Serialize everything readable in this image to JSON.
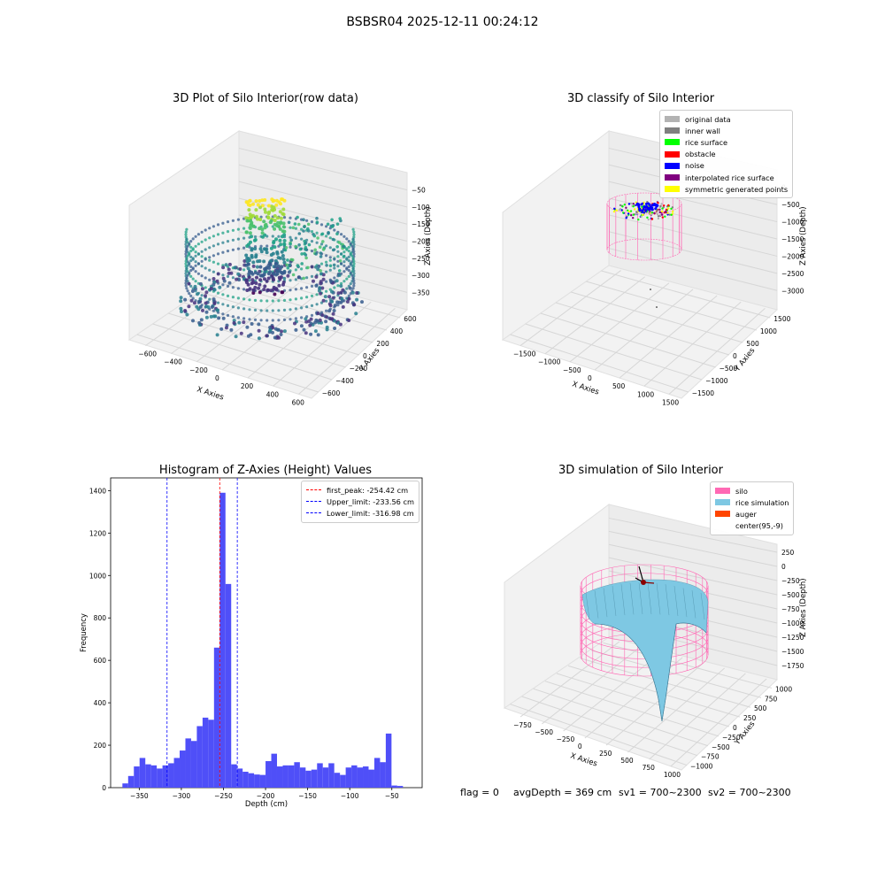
{
  "figure": {
    "title": "BSBSR04 2025-12-11 00:24:12",
    "footer": {
      "flag": "flag = 0",
      "avg": "avgDepth = 369 cm",
      "sv1": "sv1 = 700~2300",
      "sv2": "sv2 = 700~2300"
    }
  },
  "colors": {
    "histogram_bar": "#4f4ff8",
    "first_peak_line": "#ff0000",
    "limit_line": "#0000ff",
    "silo": "#ff69b4",
    "rice_simulation": "#7ec8e3",
    "auger": "#ff4500"
  },
  "chart_data": [
    {
      "type": "scatter3d",
      "title": "3D Plot of Silo Interior(row data)",
      "xlabel": "X Axies",
      "ylabel": "Y Axies",
      "zlabel": "Z Axies (Depth)",
      "xticks": [
        "−600",
        "−400",
        "−200",
        "0",
        "200",
        "400",
        "600"
      ],
      "yticks": [
        "−600",
        "−400",
        "−200",
        "0",
        "200",
        "400",
        "600"
      ],
      "zticks": [
        "−50",
        "−100",
        "−150",
        "−200",
        "−250",
        "−300",
        "−350"
      ],
      "xlim": [
        -600,
        650
      ],
      "ylim": [
        -650,
        650
      ],
      "zlim": [
        -380,
        -30
      ],
      "colormap": "viridis"
    },
    {
      "type": "scatter3d",
      "title": "3D classify of Silo Interior",
      "xlabel": "X Axies",
      "ylabel": "Y Axies",
      "zlabel": "Z Axies (Depth)",
      "xticks": [
        "−1500",
        "−1000",
        "−500",
        "0",
        "500",
        "1000",
        "1500"
      ],
      "yticks": [
        "−1500",
        "−1000",
        "−500",
        "0",
        "500",
        "1000",
        "1500"
      ],
      "zticks": [
        "0",
        "−500",
        "−1000",
        "−1500",
        "−2000",
        "−2500",
        "−3000"
      ],
      "xlim": [
        -1600,
        1600
      ],
      "ylim": [
        -1600,
        1600
      ],
      "zlim": [
        -3200,
        100
      ],
      "legend": [
        {
          "label": "original data",
          "color": "#b3b3b3"
        },
        {
          "label": "inner wall",
          "color": "#808080"
        },
        {
          "label": "rice surface",
          "color": "#00ff00"
        },
        {
          "label": "obstacle",
          "color": "#ff0000"
        },
        {
          "label": "noise",
          "color": "#0000ff"
        },
        {
          "label": "interpolated rice surface",
          "color": "#800080"
        },
        {
          "label": "symmetric generated points",
          "color": "#ffff00"
        }
      ]
    },
    {
      "type": "bar",
      "title": "Histogram of Z-Axies (Height) Values",
      "xlabel": "Depth (cm)",
      "ylabel": "Frequency",
      "xlim": [
        -384,
        -14
      ],
      "ylim": [
        0,
        1460
      ],
      "xticks": [
        -350,
        -300,
        -250,
        -200,
        -150,
        -100,
        -50
      ],
      "xtick_labels": [
        "−350",
        "−300",
        "−250",
        "−200",
        "−150",
        "−100",
        "−50"
      ],
      "yticks": [
        0,
        200,
        400,
        600,
        800,
        1000,
        1200,
        1400
      ],
      "bin_start": -370,
      "bin_width": 6.8,
      "values": [
        20,
        55,
        100,
        140,
        110,
        105,
        90,
        105,
        115,
        140,
        175,
        232,
        220,
        290,
        330,
        320,
        660,
        1390,
        960,
        110,
        90,
        75,
        68,
        62,
        60,
        125,
        160,
        100,
        105,
        105,
        120,
        95,
        80,
        85,
        115,
        95,
        115,
        70,
        60,
        95,
        105,
        95,
        100,
        85,
        140,
        120,
        255,
        10,
        8
      ],
      "vlines": [
        {
          "x": -254.42,
          "label": "first_peak: -254.42 cm",
          "color": "#ff0000"
        },
        {
          "x": -233.56,
          "label": "Upper_limit: -233.56 cm",
          "color": "#0000ff"
        },
        {
          "x": -316.98,
          "label": "Lower_limit: -316.98 cm",
          "color": "#0000ff"
        }
      ],
      "legend_position": "top-right"
    },
    {
      "type": "surface3d",
      "title": "3D simulation of Silo Interior",
      "xlabel": "X Axies",
      "ylabel": "Y Axies",
      "zlabel": "Z Axies (Depth)",
      "xticks": [
        "−750",
        "−500",
        "−250",
        "0",
        "250",
        "500",
        "750",
        "1000"
      ],
      "yticks": [
        "−1000",
        "−750",
        "−500",
        "−250",
        "0",
        "250",
        "500",
        "750",
        "1000"
      ],
      "zticks": [
        "250",
        "0",
        "−250",
        "−500",
        "−750",
        "−1000",
        "−1250",
        "−1500",
        "−1750"
      ],
      "legend": [
        {
          "label": "silo",
          "color": "#ff69b4"
        },
        {
          "label": "rice simulation",
          "color": "#7ec8e3"
        },
        {
          "label": "auger",
          "color": "#ff4500"
        },
        {
          "label": "center(95,-9)",
          "color": "none"
        }
      ]
    }
  ]
}
